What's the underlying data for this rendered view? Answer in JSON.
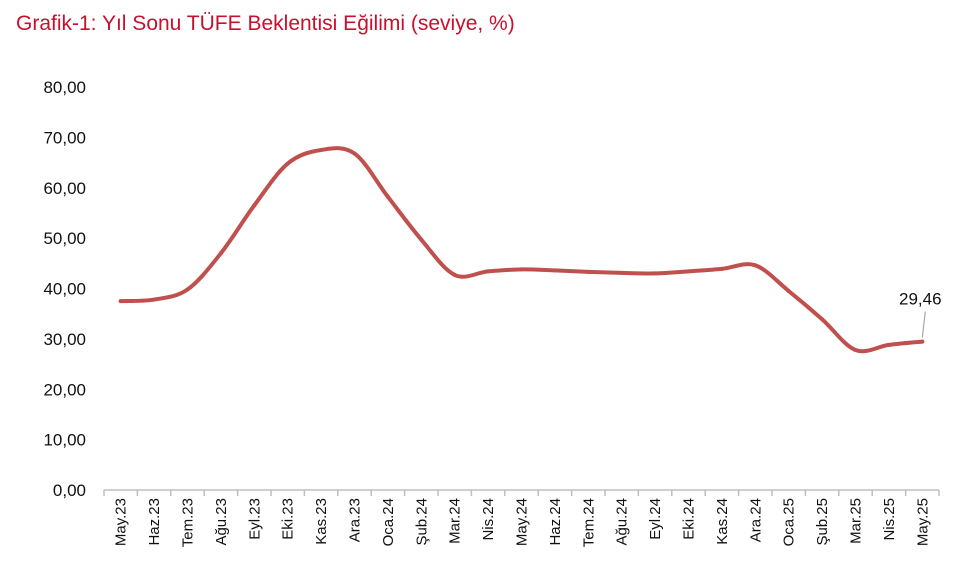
{
  "title": "Grafik-1: Yıl Sonu TÜFE Beklentisi Eğilimi (seviye, %)",
  "colors": {
    "title": "#c8102e",
    "line": "#c0504d",
    "axis": "#bfbfbf"
  },
  "chart_data": {
    "type": "line",
    "title": "Grafik-1: Yıl Sonu TÜFE Beklentisi Eğilimi (seviye, %)",
    "xlabel": "",
    "ylabel": "",
    "ylim": [
      0,
      80
    ],
    "ytick_labels": [
      "0,00",
      "10,00",
      "20,00",
      "30,00",
      "40,00",
      "50,00",
      "60,00",
      "70,00",
      "80,00"
    ],
    "grid": false,
    "legend": "none",
    "categories": [
      "May.23",
      "Haz.23",
      "Tem.23",
      "Ağu.23",
      "Eyl.23",
      "Eki.23",
      "Kas.23",
      "Ara.23",
      "Oca.24",
      "Şub.24",
      "Mar.24",
      "Nis.24",
      "May.24",
      "Haz.24",
      "Tem.24",
      "Ağu.24",
      "Eyl.24",
      "Eki.24",
      "Kas.24",
      "Ara.24",
      "Oca.25",
      "Şub.25",
      "Mar.25",
      "Nis.25",
      "May.25"
    ],
    "series": [
      {
        "values": [
          37.5,
          37.8,
          39.8,
          47.0,
          56.5,
          64.8,
          67.5,
          66.8,
          58.2,
          49.7,
          42.7,
          43.4,
          43.8,
          43.6,
          43.3,
          43.1,
          43.0,
          43.4,
          43.9,
          44.6,
          39.5,
          33.9,
          27.8,
          28.8,
          29.46
        ]
      }
    ],
    "annotations": [
      {
        "category": "May.25",
        "value": 29.46,
        "label": "29,46"
      }
    ]
  }
}
